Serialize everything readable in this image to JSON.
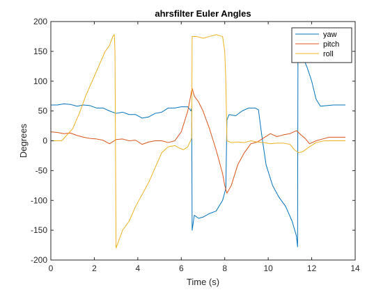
{
  "chart_data": {
    "type": "line",
    "title": "ahrsfilter Euler Angles",
    "xlabel": "Time (s)",
    "ylabel": "Degrees",
    "xlim": [
      0,
      14
    ],
    "ylim": [
      -200,
      200
    ],
    "xticks": [
      0,
      2,
      4,
      6,
      8,
      10,
      12,
      14
    ],
    "yticks": [
      -200,
      -150,
      -100,
      -50,
      0,
      50,
      100,
      150,
      200
    ],
    "xtick_labels": [
      "0",
      "2",
      "4",
      "6",
      "8",
      "10",
      "12",
      "14"
    ],
    "ytick_labels": [
      "-200",
      "-150",
      "-100",
      "-50",
      "0",
      "50",
      "100",
      "150",
      "200"
    ],
    "grid": false,
    "legend_position": "top-right",
    "series": [
      {
        "name": "yaw",
        "color": "#0072bd",
        "x": [
          0,
          0.3,
          0.6,
          0.9,
          1.2,
          1.5,
          1.8,
          2.1,
          2.4,
          2.7,
          3.0,
          3.3,
          3.6,
          3.9,
          4.2,
          4.5,
          4.8,
          5.1,
          5.4,
          5.7,
          6.0,
          6.3,
          6.45,
          6.48,
          6.5,
          6.6,
          6.8,
          7.0,
          7.3,
          7.6,
          7.9,
          8.05,
          8.1,
          8.2,
          8.5,
          8.8,
          9.1,
          9.4,
          9.55,
          9.7,
          9.9,
          10.2,
          10.5,
          10.8,
          11.1,
          11.3,
          11.35,
          11.37,
          11.45,
          11.6,
          11.8,
          12.0,
          12.2,
          12.4,
          12.7,
          13.0,
          13.3,
          13.55
        ],
        "y": [
          60,
          60,
          62,
          61,
          58,
          60,
          59,
          55,
          55,
          50,
          46,
          48,
          44,
          44,
          38,
          40,
          46,
          48,
          55,
          55,
          57,
          57,
          50,
          55,
          -150,
          -125,
          -130,
          -128,
          -122,
          -118,
          -100,
          -80,
          35,
          44,
          42,
          50,
          55,
          55,
          52,
          10,
          -40,
          -75,
          -95,
          -110,
          -135,
          -160,
          -178,
          178,
          158,
          140,
          122,
          100,
          70,
          58,
          59,
          60,
          60,
          60
        ]
      },
      {
        "name": "pitch",
        "color": "#d95319",
        "x": [
          0,
          0.3,
          0.6,
          0.9,
          1.2,
          1.5,
          1.8,
          2.1,
          2.4,
          2.7,
          3.0,
          3.3,
          3.6,
          3.9,
          4.2,
          4.5,
          4.8,
          5.1,
          5.4,
          5.7,
          6.0,
          6.3,
          6.5,
          6.6,
          6.8,
          7.0,
          7.3,
          7.6,
          7.9,
          8.0,
          8.1,
          8.3,
          8.6,
          8.9,
          9.2,
          9.5,
          9.8,
          10.1,
          10.4,
          10.7,
          11.0,
          11.3,
          11.5,
          11.7,
          11.9,
          12.2,
          12.5,
          12.8,
          13.1,
          13.55
        ],
        "y": [
          15,
          14,
          12,
          13,
          9,
          6,
          4,
          3,
          1,
          -5,
          2,
          3,
          0,
          1,
          -6,
          -2,
          0,
          0,
          -3,
          0,
          15,
          50,
          88,
          75,
          65,
          50,
          20,
          -15,
          -55,
          -75,
          -88,
          -75,
          -40,
          -20,
          -5,
          -2,
          5,
          12,
          7,
          10,
          12,
          17,
          10,
          4,
          -5,
          0,
          3,
          6,
          6,
          6
        ]
      },
      {
        "name": "roll",
        "color": "#edb120",
        "x": [
          0,
          0.3,
          0.5,
          0.7,
          1.0,
          1.3,
          1.6,
          1.9,
          2.2,
          2.5,
          2.7,
          2.85,
          2.92,
          2.95,
          3.0,
          3.3,
          3.6,
          3.9,
          4.2,
          4.5,
          4.8,
          5.1,
          5.4,
          5.7,
          5.9,
          6.1,
          6.3,
          6.45,
          6.48,
          6.5,
          6.7,
          7.0,
          7.3,
          7.6,
          7.9,
          8.0,
          8.05,
          8.1,
          8.3,
          8.6,
          8.9,
          9.2,
          9.5,
          9.8,
          10.1,
          10.4,
          10.7,
          11.0,
          11.2,
          11.4,
          11.6,
          11.9,
          12.2,
          12.6,
          13.0,
          13.55
        ],
        "y": [
          0,
          0,
          0,
          8,
          20,
          45,
          75,
          100,
          125,
          150,
          160,
          175,
          178,
          150,
          -180,
          -150,
          -135,
          -110,
          -90,
          -70,
          -45,
          -20,
          -10,
          -8,
          -12,
          -15,
          -10,
          2,
          5,
          175,
          175,
          172,
          175,
          178,
          175,
          150,
          100,
          0,
          -3,
          -2,
          -3,
          0,
          -2,
          -3,
          -5,
          -4,
          -4,
          -6,
          -15,
          -20,
          -18,
          -10,
          -3,
          0,
          0,
          0
        ]
      }
    ]
  }
}
